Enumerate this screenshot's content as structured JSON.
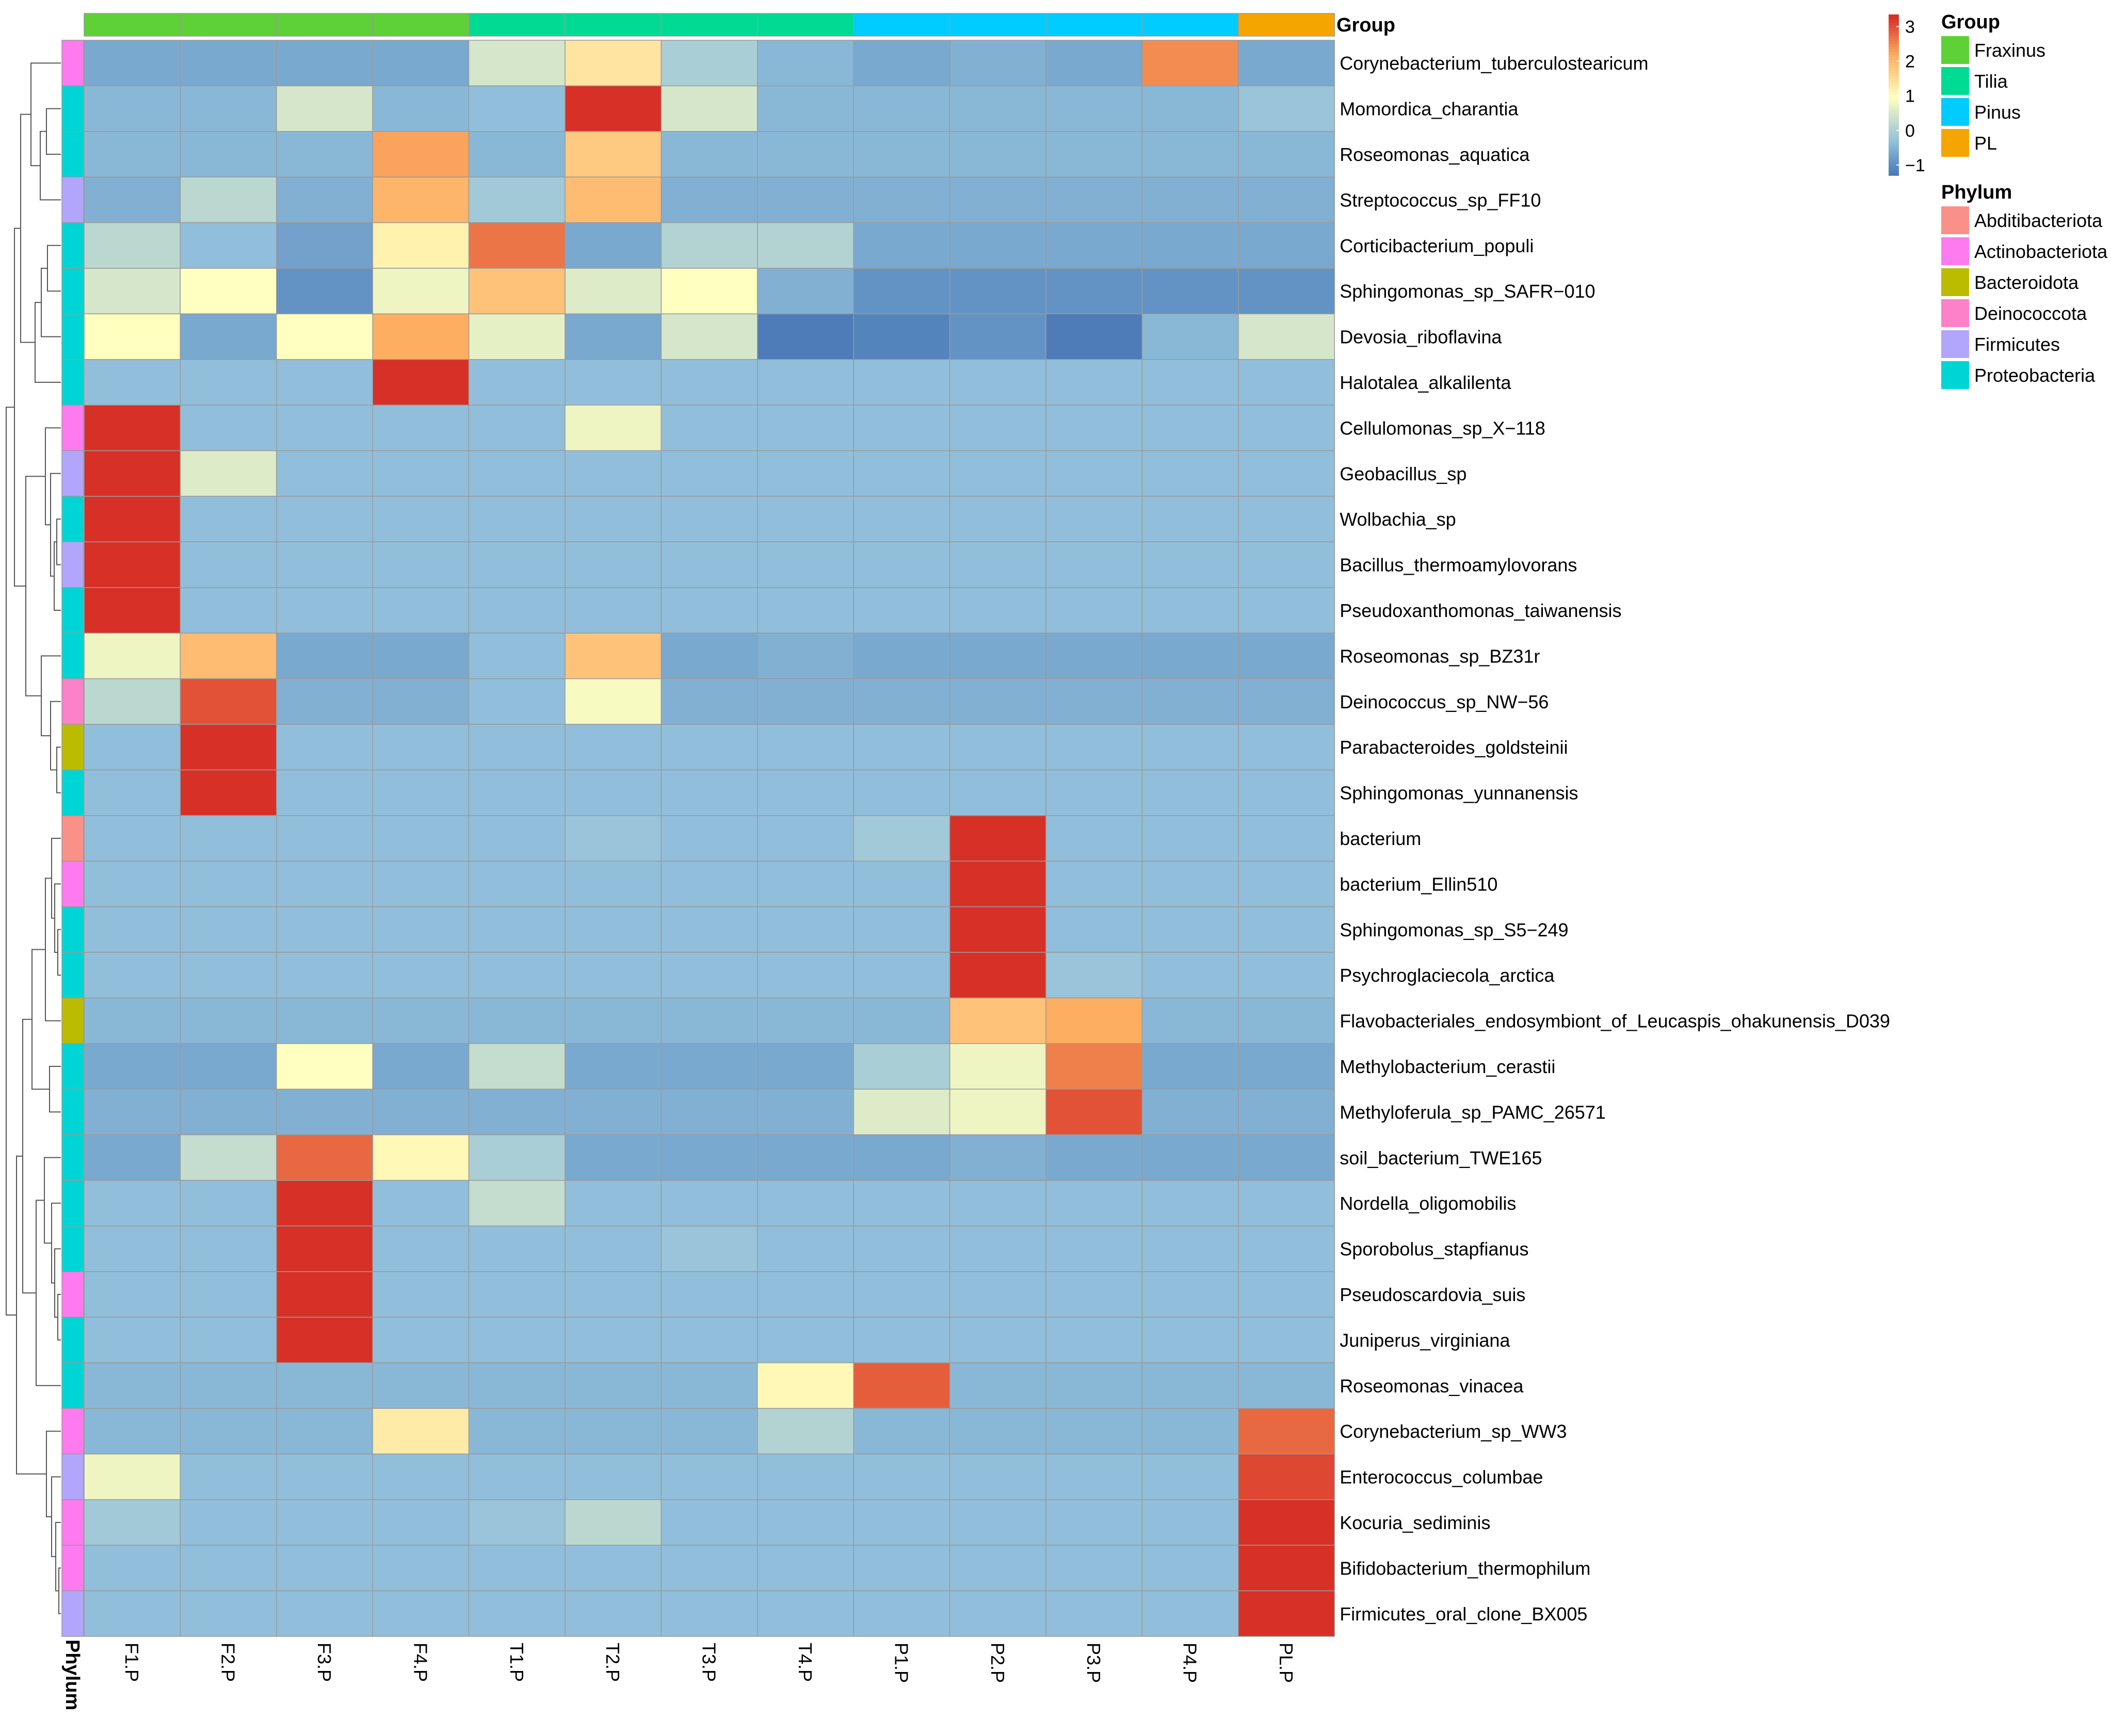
{
  "chart_data": {
    "type": "heatmap",
    "columns": [
      "F1.P",
      "F2.P",
      "F3.P",
      "F4.P",
      "T1.P",
      "T2.P",
      "T3.P",
      "T4.P",
      "P1.P",
      "P2.P",
      "P3.P",
      "P4.P",
      "PL.P"
    ],
    "rows": [
      "Corynebacterium_tuberculostearicum",
      "Momordica_charantia",
      "Roseomonas_aquatica",
      "Streptococcus_sp_FF10",
      "Corticibacterium_populi",
      "Sphingomonas_sp_SAFR−010",
      "Devosia_riboflavina",
      "Halotalea_alkalilenta",
      "Cellulomonas_sp_X−118",
      "Geobacillus_sp",
      "Wolbachia_sp",
      "Bacillus_thermoamylovorans",
      "Pseudoxanthomonas_taiwanensis",
      "Roseomonas_sp_BZ31r",
      "Deinococcus_sp_NW−56",
      "Parabacteroides_goldsteinii",
      "Sphingomonas_yunnanensis",
      "bacterium",
      "bacterium_Ellin510",
      "Sphingomonas_sp_S5−249",
      "Psychroglaciecola_arctica",
      "Flavobacteriales_endosymbiont_of_Leucaspis_ohakunensis_D039",
      "Methylobacterium_cerastii",
      "Methyloferula_sp_PAMC_26571",
      "soil_bacterium_TWE165",
      "Nordella_oligomobilis",
      "Sporobolus_stapfianus",
      "Pseudoscardovia_suis",
      "Juniperus_virginiana",
      "Roseomonas_vinacea",
      "Corynebacterium_sp_WW3",
      "Enterococcus_columbae",
      "Kocuria_sediminis",
      "Bifidobacterium_thermophilum",
      "Firmicutes_oral_clone_BX005"
    ],
    "values": [
      [
        -0.6,
        -0.6,
        -0.6,
        -0.6,
        0.5,
        1.4,
        0.0,
        -0.4,
        -0.6,
        -0.5,
        -0.6,
        2.5,
        -0.6
      ],
      [
        -0.4,
        -0.4,
        0.5,
        -0.4,
        -0.3,
        3.3,
        0.5,
        -0.4,
        -0.4,
        -0.4,
        -0.4,
        -0.4,
        -0.2
      ],
      [
        -0.4,
        -0.4,
        -0.4,
        2.3,
        -0.4,
        1.8,
        -0.4,
        -0.4,
        -0.4,
        -0.4,
        -0.4,
        -0.4,
        -0.4
      ],
      [
        -0.5,
        0.2,
        -0.5,
        2.1,
        -0.1,
        2.0,
        -0.5,
        -0.5,
        -0.5,
        -0.5,
        -0.5,
        -0.5,
        -0.5
      ],
      [
        0.2,
        -0.3,
        -0.7,
        1.2,
        2.7,
        -0.6,
        0.1,
        0.1,
        -0.6,
        -0.6,
        -0.6,
        -0.6,
        -0.6
      ],
      [
        0.5,
        1.0,
        -0.9,
        0.8,
        1.9,
        0.6,
        1.0,
        -0.5,
        -0.9,
        -0.9,
        -0.9,
        -0.9,
        -0.9
      ],
      [
        1.0,
        -0.6,
        1.0,
        2.2,
        0.7,
        -0.6,
        0.5,
        -1.2,
        -1.1,
        -0.9,
        -1.2,
        -0.4,
        0.5
      ],
      [
        -0.3,
        -0.3,
        -0.3,
        3.3,
        -0.3,
        -0.3,
        -0.3,
        -0.3,
        -0.3,
        -0.3,
        -0.3,
        -0.3,
        -0.3
      ],
      [
        3.3,
        -0.3,
        -0.3,
        -0.3,
        -0.3,
        0.8,
        -0.3,
        -0.3,
        -0.3,
        -0.3,
        -0.3,
        -0.3,
        -0.3
      ],
      [
        3.3,
        0.6,
        -0.3,
        -0.3,
        -0.3,
        -0.3,
        -0.3,
        -0.3,
        -0.3,
        -0.3,
        -0.3,
        -0.3,
        -0.3
      ],
      [
        3.3,
        -0.3,
        -0.3,
        -0.3,
        -0.3,
        -0.3,
        -0.3,
        -0.3,
        -0.3,
        -0.3,
        -0.3,
        -0.3,
        -0.3
      ],
      [
        3.3,
        -0.3,
        -0.3,
        -0.3,
        -0.3,
        -0.3,
        -0.3,
        -0.3,
        -0.3,
        -0.3,
        -0.3,
        -0.3,
        -0.3
      ],
      [
        3.3,
        -0.3,
        -0.3,
        -0.3,
        -0.3,
        -0.3,
        -0.3,
        -0.3,
        -0.3,
        -0.3,
        -0.3,
        -0.3,
        -0.3
      ],
      [
        0.8,
        2.0,
        -0.6,
        -0.6,
        -0.3,
        1.9,
        -0.6,
        -0.5,
        -0.6,
        -0.6,
        -0.6,
        -0.6,
        -0.6
      ],
      [
        0.2,
        3.0,
        -0.5,
        -0.5,
        -0.3,
        0.9,
        -0.5,
        -0.5,
        -0.5,
        -0.5,
        -0.5,
        -0.5,
        -0.5
      ],
      [
        -0.3,
        3.3,
        -0.3,
        -0.3,
        -0.3,
        -0.3,
        -0.3,
        -0.3,
        -0.3,
        -0.3,
        -0.3,
        -0.3,
        -0.3
      ],
      [
        -0.3,
        3.3,
        -0.3,
        -0.3,
        -0.3,
        -0.3,
        -0.3,
        -0.3,
        -0.3,
        -0.3,
        -0.3,
        -0.3,
        -0.3
      ],
      [
        -0.3,
        -0.3,
        -0.3,
        -0.3,
        -0.3,
        -0.2,
        -0.3,
        -0.3,
        -0.1,
        3.3,
        -0.3,
        -0.3,
        -0.3
      ],
      [
        -0.3,
        -0.3,
        -0.3,
        -0.3,
        -0.3,
        -0.3,
        -0.3,
        -0.3,
        -0.3,
        3.3,
        -0.3,
        -0.3,
        -0.3
      ],
      [
        -0.3,
        -0.3,
        -0.3,
        -0.3,
        -0.3,
        -0.3,
        -0.3,
        -0.3,
        -0.3,
        3.3,
        -0.3,
        -0.3,
        -0.3
      ],
      [
        -0.3,
        -0.3,
        -0.3,
        -0.3,
        -0.3,
        -0.3,
        -0.3,
        -0.3,
        -0.3,
        3.3,
        -0.2,
        -0.3,
        -0.3
      ],
      [
        -0.4,
        -0.4,
        -0.4,
        -0.4,
        -0.4,
        -0.4,
        -0.4,
        -0.4,
        -0.4,
        1.9,
        2.2,
        -0.4,
        -0.4
      ],
      [
        -0.6,
        -0.6,
        1.0,
        -0.6,
        0.3,
        -0.6,
        -0.6,
        -0.6,
        0.0,
        0.8,
        2.6,
        -0.6,
        -0.6
      ],
      [
        -0.5,
        -0.5,
        -0.5,
        -0.5,
        -0.5,
        -0.5,
        -0.5,
        -0.5,
        0.6,
        0.8,
        3.0,
        -0.5,
        -0.5
      ],
      [
        -0.6,
        0.3,
        2.8,
        1.1,
        0.0,
        -0.6,
        -0.6,
        -0.6,
        -0.6,
        -0.5,
        -0.6,
        -0.6,
        -0.6
      ],
      [
        -0.3,
        -0.3,
        3.3,
        -0.3,
        0.3,
        -0.3,
        -0.3,
        -0.3,
        -0.3,
        -0.3,
        -0.3,
        -0.3,
        -0.3
      ],
      [
        -0.3,
        -0.3,
        3.3,
        -0.3,
        -0.3,
        -0.3,
        -0.2,
        -0.3,
        -0.3,
        -0.3,
        -0.3,
        -0.3,
        -0.3
      ],
      [
        -0.3,
        -0.3,
        3.3,
        -0.3,
        -0.3,
        -0.3,
        -0.3,
        -0.3,
        -0.3,
        -0.3,
        -0.3,
        -0.3,
        -0.3
      ],
      [
        -0.3,
        -0.3,
        3.3,
        -0.3,
        -0.3,
        -0.3,
        -0.3,
        -0.3,
        -0.3,
        -0.3,
        -0.3,
        -0.3,
        -0.3
      ],
      [
        -0.4,
        -0.4,
        -0.4,
        -0.4,
        -0.4,
        -0.4,
        -0.4,
        1.1,
        2.9,
        -0.4,
        -0.4,
        -0.4,
        -0.4
      ],
      [
        -0.4,
        -0.4,
        -0.4,
        1.3,
        -0.4,
        -0.4,
        -0.4,
        0.1,
        -0.4,
        -0.4,
        -0.4,
        -0.4,
        2.8
      ],
      [
        0.8,
        -0.3,
        -0.3,
        -0.3,
        -0.3,
        -0.3,
        -0.3,
        -0.3,
        -0.3,
        -0.3,
        -0.3,
        -0.3,
        3.1
      ],
      [
        -0.1,
        -0.3,
        -0.3,
        -0.3,
        -0.2,
        0.2,
        -0.3,
        -0.3,
        -0.3,
        -0.3,
        -0.3,
        -0.3,
        3.3
      ],
      [
        -0.3,
        -0.3,
        -0.3,
        -0.3,
        -0.3,
        -0.3,
        -0.3,
        -0.3,
        -0.3,
        -0.3,
        -0.3,
        -0.3,
        3.3
      ],
      [
        -0.3,
        -0.3,
        -0.3,
        -0.3,
        -0.3,
        -0.3,
        -0.3,
        -0.3,
        -0.3,
        -0.3,
        -0.3,
        -0.3,
        3.3
      ]
    ],
    "column_groups": [
      "Fraxinus",
      "Fraxinus",
      "Fraxinus",
      "Fraxinus",
      "Tilia",
      "Tilia",
      "Tilia",
      "Tilia",
      "Pinus",
      "Pinus",
      "Pinus",
      "Pinus",
      "PL"
    ],
    "row_phylum": [
      "Actinobacteriota",
      "Proteobacteria",
      "Proteobacteria",
      "Firmicutes",
      "Proteobacteria",
      "Proteobacteria",
      "Proteobacteria",
      "Proteobacteria",
      "Actinobacteriota",
      "Firmicutes",
      "Proteobacteria",
      "Firmicutes",
      "Proteobacteria",
      "Proteobacteria",
      "Deinococcota",
      "Bacteroidota",
      "Proteobacteria",
      "Abditibacteriota",
      "Actinobacteriota",
      "Proteobacteria",
      "Proteobacteria",
      "Bacteroidota",
      "Proteobacteria",
      "Proteobacteria",
      "Proteobacteria",
      "Proteobacteria",
      "Proteobacteria",
      "Actinobacteriota",
      "Proteobacteria",
      "Proteobacteria",
      "Actinobacteriota",
      "Firmicutes",
      "Actinobacteriota",
      "Actinobacteriota",
      "Firmicutes"
    ],
    "group_annotation_label": "Phylum",
    "group_bar_label": "Group",
    "color_scale": {
      "min": -1,
      "max": 3,
      "ticks": [
        "3",
        "2",
        "1",
        "0",
        "−1"
      ],
      "tick_values": [
        3,
        2,
        1,
        0,
        -1
      ],
      "colors": [
        "#4575b4",
        "#91bfdb",
        "#ffffbf",
        "#fdae61",
        "#d73027"
      ],
      "color_stops": [
        -1.3,
        -0.3,
        1.0,
        2.2,
        3.3
      ]
    },
    "legend": {
      "group_title": "Group",
      "groups": [
        {
          "name": "Fraxinus",
          "color": "#5dd135"
        },
        {
          "name": "Tilia",
          "color": "#00db94"
        },
        {
          "name": "Pinus",
          "color": "#00ccff"
        },
        {
          "name": "PL",
          "color": "#f5a500"
        }
      ],
      "phylum_title": "Phylum",
      "phyla": [
        {
          "name": "Abditibacteriota",
          "color": "#f99189"
        },
        {
          "name": "Actinobacteriota",
          "color": "#fd7aef"
        },
        {
          "name": "Bacteroidota",
          "color": "#bbbb00"
        },
        {
          "name": "Deinococcota",
          "color": "#fb81c8"
        },
        {
          "name": "Firmicutes",
          "color": "#b1a6fb"
        },
        {
          "name": "Proteobacteria",
          "color": "#00d5d5"
        }
      ]
    }
  }
}
